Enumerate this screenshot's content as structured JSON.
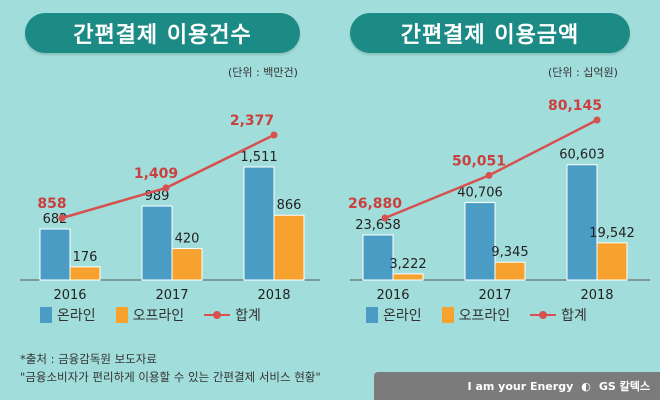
{
  "chart_data": [
    {
      "type": "bar",
      "title": "간편결제 이용건수",
      "unit": "(단위 : 백만건)",
      "categories": [
        "2016",
        "2017",
        "2018"
      ],
      "series": [
        {
          "name": "온라인",
          "kind": "bar",
          "color": "#4a9cc4",
          "values": [
            682,
            989,
            1511
          ]
        },
        {
          "name": "오프라인",
          "kind": "bar",
          "color": "#f7a12f",
          "values": [
            176,
            420,
            866
          ]
        },
        {
          "name": "합계",
          "kind": "line",
          "color": "#d6514f",
          "values": [
            858,
            1409,
            2377
          ]
        }
      ],
      "labels": {
        "online": [
          "682",
          "989",
          "1,511"
        ],
        "offline": [
          "176",
          "420",
          "866"
        ],
        "total": [
          "858",
          "1,409",
          "2,377"
        ]
      }
    },
    {
      "type": "bar",
      "title": "간편결제 이용금액",
      "unit": "(단위 : 십억원)",
      "categories": [
        "2016",
        "2017",
        "2018"
      ],
      "series": [
        {
          "name": "온라인",
          "kind": "bar",
          "color": "#4a9cc4",
          "values": [
            23658,
            40706,
            60603
          ]
        },
        {
          "name": "오프라인",
          "kind": "bar",
          "color": "#f7a12f",
          "values": [
            3222,
            9345,
            19542
          ]
        },
        {
          "name": "합계",
          "kind": "line",
          "color": "#d6514f",
          "values": [
            26880,
            50051,
            80145
          ]
        }
      ],
      "labels": {
        "online": [
          "23,658",
          "40,706",
          "60,603"
        ],
        "offline": [
          "3,222",
          "9,345",
          "19,542"
        ],
        "total": [
          "26,880",
          "50,051",
          "80,145"
        ]
      }
    }
  ],
  "source": {
    "line1": "*출처 : 금융감독원 보도자료",
    "line2": "\"금융소비자가 편리하게 이용할 수 있는 간편결제 서비스 현황\""
  },
  "logo": {
    "slogan": "I am your Energy",
    "brand": "GS 칼텍스"
  }
}
